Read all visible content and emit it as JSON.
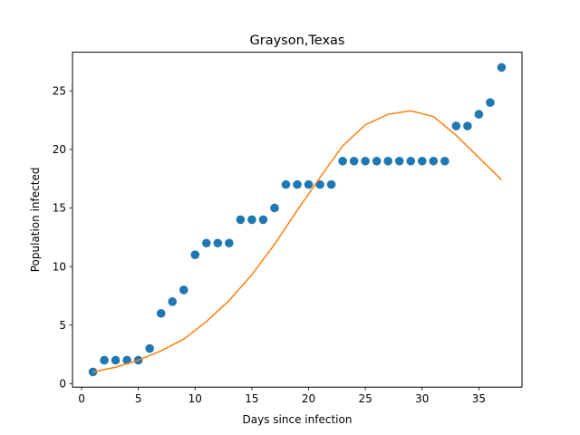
{
  "chart_data": {
    "type": "scatter",
    "title": "Grayson,Texas",
    "xlabel": "Days since infection",
    "ylabel": "Population infected",
    "xlim": [
      -0.8,
      38.8
    ],
    "ylim": [
      -0.3,
      28.3
    ],
    "xticks": [
      0,
      5,
      10,
      15,
      20,
      25,
      30,
      35
    ],
    "yticks": [
      0,
      5,
      10,
      15,
      20,
      25
    ],
    "grid": false,
    "series": [
      {
        "kind": "scatter",
        "color": "#1f77b4",
        "x": [
          1,
          2,
          3,
          4,
          5,
          6,
          7,
          8,
          9,
          10,
          11,
          12,
          13,
          14,
          15,
          16,
          17,
          18,
          19,
          20,
          21,
          22,
          23,
          24,
          25,
          26,
          27,
          28,
          29,
          30,
          31,
          32,
          33,
          34,
          35,
          36,
          37
        ],
        "values": [
          1,
          2,
          2,
          2,
          2,
          3,
          6,
          7,
          8,
          11,
          12,
          12,
          12,
          14,
          14,
          14,
          15,
          17,
          17,
          17,
          17,
          17,
          19,
          19,
          19,
          19,
          19,
          19,
          19,
          19,
          19,
          19,
          22,
          22,
          23,
          24,
          27
        ]
      },
      {
        "kind": "line",
        "color": "#ff7f0e",
        "x": [
          1,
          3,
          5,
          7,
          9,
          11,
          13,
          15,
          17,
          19,
          21,
          23,
          25,
          27,
          29,
          31,
          33,
          35,
          37
        ],
        "values": [
          1.0,
          1.4,
          2.0,
          2.8,
          3.8,
          5.3,
          7.1,
          9.3,
          11.9,
          14.8,
          17.6,
          20.3,
          22.1,
          23.0,
          23.3,
          22.8,
          21.2,
          19.3,
          17.4
        ]
      }
    ]
  }
}
